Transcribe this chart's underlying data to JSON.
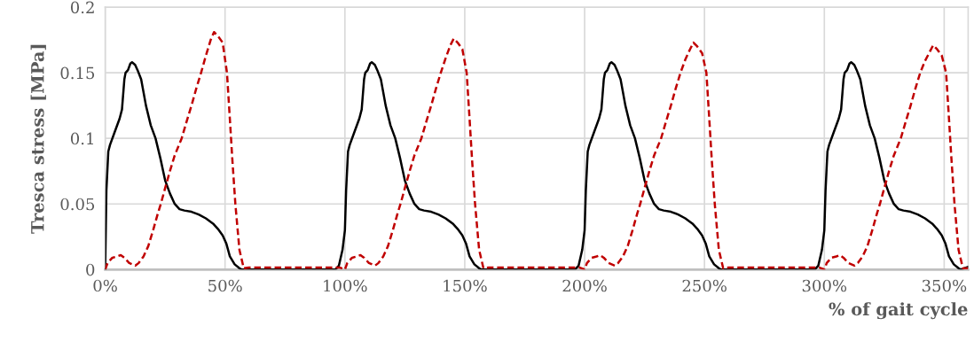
{
  "chart_data": {
    "type": "line",
    "xlabel": "% of gait cycle",
    "ylabel": "Tresca stress [MPa]",
    "xlim": [
      0,
      360
    ],
    "ylim": [
      0,
      0.2
    ],
    "xticks": [
      {
        "value": 0,
        "label": "0%"
      },
      {
        "value": 50,
        "label": "50%"
      },
      {
        "value": 100,
        "label": "100%"
      },
      {
        "value": 150,
        "label": "150%"
      },
      {
        "value": 200,
        "label": "200%"
      },
      {
        "value": 250,
        "label": "250%"
      },
      {
        "value": 300,
        "label": "300%"
      },
      {
        "value": 350,
        "label": "350%"
      }
    ],
    "yticks": [
      0,
      0.05,
      0.1,
      0.15,
      0.2
    ],
    "grid": true,
    "marker": "none",
    "series": [
      {
        "color": "#000000",
        "line_style": "solid",
        "x": [
          0,
          0.5,
          1.3,
          2,
          4,
          6,
          7,
          8,
          8.5,
          9.5,
          10.5,
          11.2,
          12.5,
          13.5,
          15,
          16,
          17,
          19,
          21,
          23,
          25,
          27,
          29,
          31,
          33,
          36,
          39,
          42,
          45,
          47,
          49,
          50.5,
          52,
          54,
          56,
          57,
          96,
          97.5,
          99,
          100,
          100.5,
          101.3,
          102,
          104,
          106,
          107,
          108,
          108.5,
          109.5,
          110.5,
          111.2,
          112.5,
          113.5,
          115,
          116,
          117,
          119,
          121,
          123,
          125,
          127,
          129,
          131,
          133,
          136,
          139,
          142,
          145,
          147,
          149,
          150.5,
          152,
          154,
          156,
          157,
          196,
          197.5,
          199,
          200,
          200.5,
          201.3,
          202,
          204,
          206,
          207,
          208,
          208.5,
          209.5,
          210.5,
          211.2,
          212.5,
          213.5,
          215,
          216,
          217,
          219,
          221,
          223,
          225,
          227,
          229,
          231,
          233,
          236,
          239,
          242,
          245,
          247,
          249,
          250.5,
          252,
          254,
          256,
          257,
          296,
          297.5,
          299,
          300,
          300.5,
          301.3,
          302,
          304,
          306,
          307,
          308,
          308.5,
          309.5,
          310.5,
          311.2,
          312.5,
          313.5,
          315,
          316,
          317,
          319,
          321,
          323,
          325,
          327,
          329,
          331,
          333,
          336,
          339,
          342,
          345,
          347,
          349,
          350.5,
          352,
          354,
          356,
          357,
          360
        ],
        "values": [
          0,
          0.06,
          0.09,
          0.095,
          0.105,
          0.115,
          0.122,
          0.145,
          0.15,
          0.152,
          0.157,
          0.158,
          0.156,
          0.152,
          0.145,
          0.135,
          0.125,
          0.11,
          0.1,
          0.085,
          0.068,
          0.058,
          0.05,
          0.046,
          0.045,
          0.044,
          0.042,
          0.039,
          0.035,
          0.031,
          0.026,
          0.02,
          0.01,
          0.004,
          0.001,
          0,
          0,
          0.003,
          0.015,
          0.03,
          0.06,
          0.09,
          0.095,
          0.105,
          0.115,
          0.122,
          0.145,
          0.15,
          0.152,
          0.157,
          0.158,
          0.156,
          0.152,
          0.145,
          0.135,
          0.125,
          0.11,
          0.1,
          0.085,
          0.068,
          0.058,
          0.05,
          0.046,
          0.045,
          0.044,
          0.042,
          0.039,
          0.035,
          0.031,
          0.026,
          0.02,
          0.01,
          0.004,
          0.001,
          0,
          0,
          0.003,
          0.015,
          0.03,
          0.06,
          0.09,
          0.095,
          0.105,
          0.115,
          0.122,
          0.145,
          0.15,
          0.152,
          0.157,
          0.158,
          0.156,
          0.152,
          0.145,
          0.135,
          0.125,
          0.11,
          0.1,
          0.085,
          0.068,
          0.058,
          0.05,
          0.046,
          0.045,
          0.044,
          0.042,
          0.039,
          0.035,
          0.031,
          0.026,
          0.02,
          0.01,
          0.004,
          0.001,
          0,
          0,
          0.003,
          0.015,
          0.03,
          0.06,
          0.09,
          0.095,
          0.105,
          0.115,
          0.122,
          0.145,
          0.15,
          0.152,
          0.157,
          0.158,
          0.156,
          0.152,
          0.145,
          0.135,
          0.125,
          0.11,
          0.1,
          0.085,
          0.068,
          0.058,
          0.05,
          0.046,
          0.045,
          0.044,
          0.042,
          0.039,
          0.035,
          0.031,
          0.026,
          0.02,
          0.01,
          0.004,
          0.001,
          0,
          0.002
        ]
      },
      {
        "color": "#c00000",
        "line_style": "dashed",
        "x": [
          0,
          1,
          3,
          5,
          6.5,
          8,
          10,
          12.6,
          14,
          16,
          18,
          20,
          22,
          23.2,
          25,
          27,
          29,
          31.9,
          34,
          36,
          38,
          40,
          42,
          44,
          45.4,
          47,
          49,
          50.8,
          52,
          53,
          54.3,
          56,
          57.8,
          60,
          98,
          100,
          101,
          103,
          105,
          106.5,
          108,
          110,
          112.6,
          114,
          116,
          118,
          120,
          122,
          123.2,
          125,
          127,
          129,
          131.9,
          134,
          136,
          138,
          140,
          142,
          144,
          145.4,
          147,
          149,
          150.8,
          152,
          153,
          154.3,
          156,
          157.8,
          160,
          198,
          200,
          201,
          203,
          205,
          206.5,
          208,
          210,
          212.6,
          214,
          216,
          218,
          220,
          222,
          223.2,
          225,
          227,
          229,
          231.9,
          234,
          236,
          238,
          240,
          242,
          244,
          245.4,
          247,
          249,
          250.8,
          252,
          253,
          254.3,
          256,
          257.8,
          260,
          298,
          300,
          301,
          303,
          305,
          306.5,
          308,
          310,
          312.6,
          314,
          316,
          318,
          320,
          322,
          323.2,
          325,
          327,
          329,
          331.9,
          334,
          336,
          338,
          340,
          342,
          344,
          345.4,
          347,
          349,
          350.8,
          352,
          353,
          354.3,
          356,
          357.8,
          360
        ],
        "values": [
          0,
          0.005,
          0.009,
          0.01,
          0.011,
          0.009,
          0.005,
          0.003,
          0.005,
          0.01,
          0.018,
          0.03,
          0.043,
          0.05,
          0.062,
          0.075,
          0.087,
          0.1,
          0.113,
          0.125,
          0.138,
          0.15,
          0.163,
          0.175,
          0.181,
          0.178,
          0.173,
          0.15,
          0.115,
          0.085,
          0.05,
          0.015,
          0.001,
          0.0015,
          0.0015,
          0,
          0.005,
          0.009,
          0.01,
          0.011,
          0.009,
          0.005,
          0.003,
          0.005,
          0.01,
          0.018,
          0.03,
          0.043,
          0.05,
          0.062,
          0.075,
          0.087,
          0.1,
          0.113,
          0.125,
          0.138,
          0.15,
          0.161,
          0.171,
          0.176,
          0.173,
          0.168,
          0.15,
          0.115,
          0.085,
          0.05,
          0.015,
          0.001,
          0.0015,
          0.0015,
          0,
          0.005,
          0.009,
          0.01,
          0.011,
          0.009,
          0.005,
          0.003,
          0.005,
          0.01,
          0.018,
          0.03,
          0.043,
          0.05,
          0.062,
          0.075,
          0.087,
          0.1,
          0.113,
          0.125,
          0.138,
          0.15,
          0.16,
          0.168,
          0.173,
          0.17,
          0.165,
          0.15,
          0.115,
          0.085,
          0.05,
          0.015,
          0.001,
          0.0015,
          0.0015,
          0,
          0.005,
          0.009,
          0.01,
          0.011,
          0.009,
          0.005,
          0.003,
          0.005,
          0.01,
          0.018,
          0.03,
          0.043,
          0.05,
          0.062,
          0.075,
          0.087,
          0.1,
          0.113,
          0.125,
          0.138,
          0.15,
          0.159,
          0.166,
          0.171,
          0.168,
          0.163,
          0.15,
          0.115,
          0.085,
          0.05,
          0.015,
          0.001,
          0.001
        ]
      }
    ]
  }
}
